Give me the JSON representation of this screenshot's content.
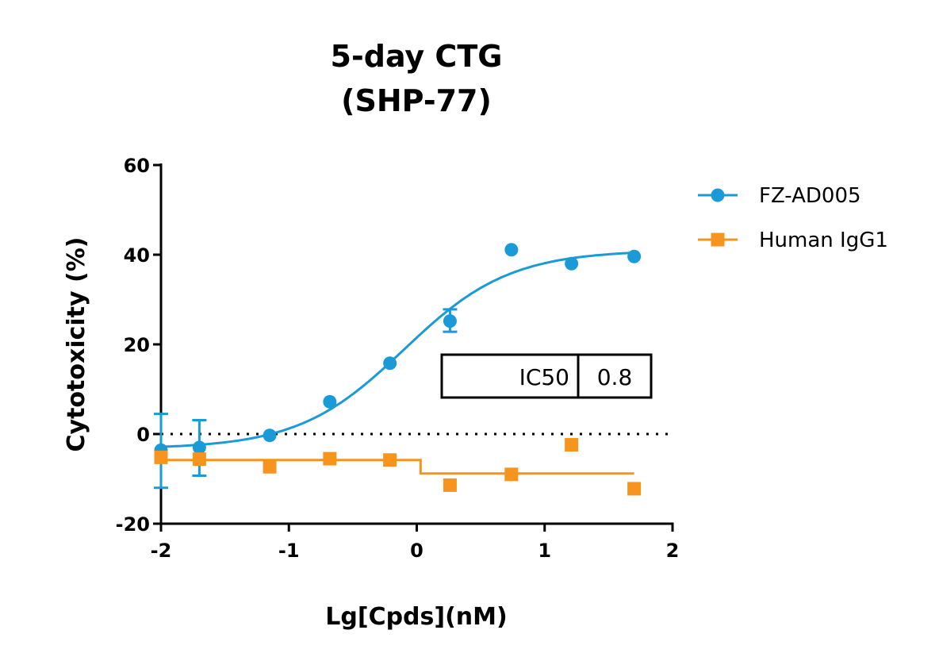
{
  "chart_data": {
    "type": "scatter",
    "title": [
      "5-day CTG",
      "(SHP-77)"
    ],
    "xlabel": "Lg[Cpds](nM)",
    "ylabel": "Cytotoxicity (%)",
    "xlim": [
      -2,
      2
    ],
    "ylim": [
      -20,
      60
    ],
    "xticks": [
      -2,
      -1,
      0,
      1,
      2
    ],
    "yticks": [
      -20,
      0,
      20,
      40,
      60
    ],
    "xtick_labels": [
      "-2",
      "-1",
      "0",
      "1",
      "2"
    ],
    "ytick_labels": [
      "-20",
      "0",
      "20",
      "40",
      "60"
    ],
    "reference_line_y": 0,
    "legend_position": "right",
    "series": [
      {
        "name": "FZ-AD005",
        "color": "#1a9bd7",
        "marker": "circle",
        "points": [
          {
            "x": -2.0,
            "y": -3.6,
            "err_low": -12.0,
            "err_high": 4.5
          },
          {
            "x": -1.7,
            "y": -3.0,
            "err_low": -9.3,
            "err_high": 3.1
          },
          {
            "x": -1.15,
            "y": -0.3
          },
          {
            "x": -0.68,
            "y": 7.2
          },
          {
            "x": -0.21,
            "y": 15.8
          },
          {
            "x": 0.26,
            "y": 25.2,
            "err_low": 22.8,
            "err_high": 27.8
          },
          {
            "x": 0.74,
            "y": 41.1
          },
          {
            "x": 1.21,
            "y": 38.0
          },
          {
            "x": 1.7,
            "y": 39.6
          }
        ],
        "fit": {
          "model": "4PL",
          "bottom": -3.3,
          "top": 41.0,
          "log_ic50": -0.1,
          "hill": 1.05
        }
      },
      {
        "name": "Human IgG1",
        "color": "#f7941d",
        "marker": "square",
        "points": [
          {
            "x": -2.0,
            "y": -5.2
          },
          {
            "x": -1.7,
            "y": -5.6
          },
          {
            "x": -1.15,
            "y": -7.3
          },
          {
            "x": -0.68,
            "y": -5.5
          },
          {
            "x": -0.21,
            "y": -5.8
          },
          {
            "x": 0.26,
            "y": -11.4
          },
          {
            "x": 0.74,
            "y": -9.0
          },
          {
            "x": 1.21,
            "y": -2.4
          },
          {
            "x": 1.7,
            "y": -12.2
          }
        ],
        "fit": {
          "model": "step",
          "left": -5.8,
          "right": -8.8,
          "x_step": 0.03
        }
      }
    ],
    "table": {
      "label": "IC50",
      "value": "0.8"
    }
  }
}
